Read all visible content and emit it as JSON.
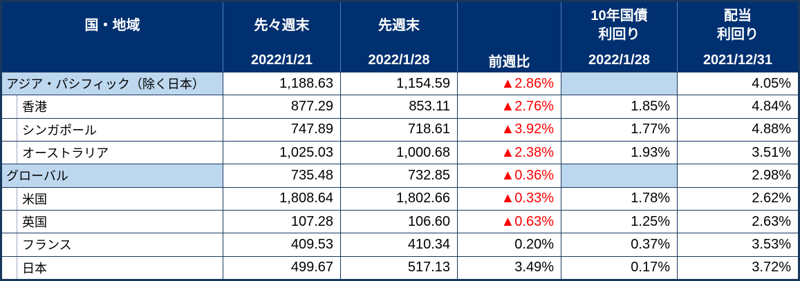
{
  "header": {
    "region": "国・地域",
    "prev2_label": "先々週末",
    "prev2_date": "2022/1/21",
    "prev1_label": "先週末",
    "prev1_date": "2022/1/28",
    "wow_label": "前週比",
    "bond_label1": "10年国債",
    "bond_label2": "利回り",
    "bond_date": "2022/1/28",
    "dividend_label1": "配当",
    "dividend_label2": "利回り",
    "dividend_date": "2021/12/31"
  },
  "chart_data": {
    "type": "table",
    "title": "",
    "columns": [
      "国・地域",
      "先々週末 2022/1/21",
      "先週末 2022/1/28",
      "前週比",
      "10年国債利回り 2022/1/28",
      "配当利回り 2021/12/31"
    ],
    "rows": [
      {
        "name": "アジア・パシフィック（除く日本）",
        "is_group": true,
        "prev2": "1,188.63",
        "prev1": "1,154.59",
        "wow": "▲2.86%",
        "wow_negative": true,
        "bond_yield": "",
        "dividend_yield": "4.05%"
      },
      {
        "name": "香港",
        "is_group": false,
        "prev2": "877.29",
        "prev1": "853.11",
        "wow": "▲2.76%",
        "wow_negative": true,
        "bond_yield": "1.85%",
        "dividend_yield": "4.84%"
      },
      {
        "name": "シンガポール",
        "is_group": false,
        "prev2": "747.89",
        "prev1": "718.61",
        "wow": "▲3.92%",
        "wow_negative": true,
        "bond_yield": "1.77%",
        "dividend_yield": "4.88%"
      },
      {
        "name": "オーストラリア",
        "is_group": false,
        "prev2": "1,025.03",
        "prev1": "1,000.68",
        "wow": "▲2.38%",
        "wow_negative": true,
        "bond_yield": "1.93%",
        "dividend_yield": "3.51%"
      },
      {
        "name": "グローバル",
        "is_group": true,
        "prev2": "735.48",
        "prev1": "732.85",
        "wow": "▲0.36%",
        "wow_negative": true,
        "bond_yield": "",
        "dividend_yield": "2.98%"
      },
      {
        "name": "米国",
        "is_group": false,
        "prev2": "1,808.64",
        "prev1": "1,802.66",
        "wow": "▲0.33%",
        "wow_negative": true,
        "bond_yield": "1.78%",
        "dividend_yield": "2.62%"
      },
      {
        "name": "英国",
        "is_group": false,
        "prev2": "107.28",
        "prev1": "106.60",
        "wow": "▲0.63%",
        "wow_negative": true,
        "bond_yield": "1.25%",
        "dividend_yield": "2.63%"
      },
      {
        "name": "フランス",
        "is_group": false,
        "prev2": "409.53",
        "prev1": "410.34",
        "wow": "0.20%",
        "wow_negative": false,
        "bond_yield": "0.37%",
        "dividend_yield": "3.53%"
      },
      {
        "name": "日本",
        "is_group": false,
        "prev2": "499.67",
        "prev1": "517.13",
        "wow": "3.49%",
        "wow_negative": false,
        "bond_yield": "0.17%",
        "dividend_yield": "3.72%"
      }
    ]
  },
  "colors": {
    "header_bg": "#003070",
    "header_text": "#ffffff",
    "group_row_bg": "#bdd7ee",
    "negative_text": "#ff0000",
    "grid_border": "#17375d",
    "row_bg": "#ffffff",
    "body_text": "#000000"
  }
}
